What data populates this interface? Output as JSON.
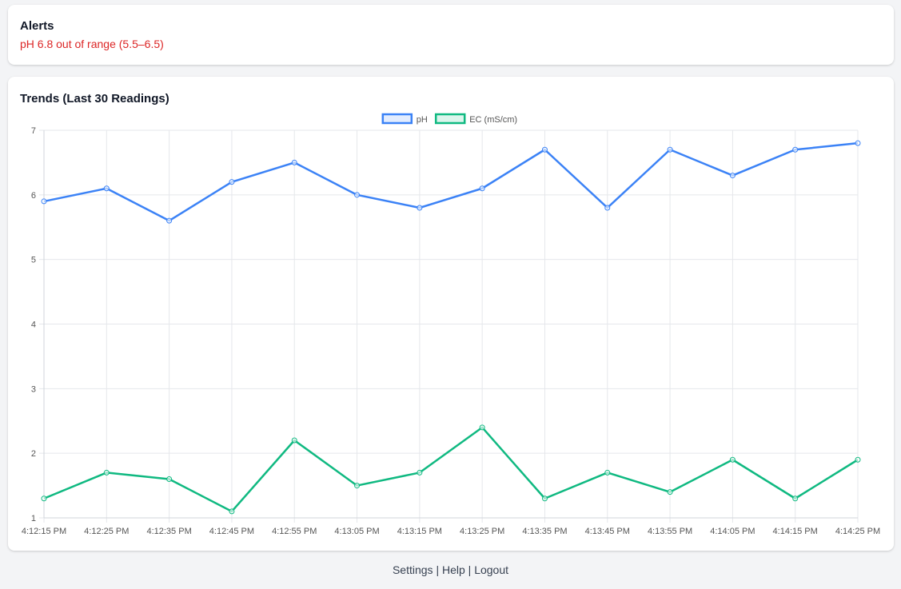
{
  "alerts": {
    "title": "Alerts",
    "message": "pH 6.8 out of range (5.5–6.5)"
  },
  "trends": {
    "title": "Trends (Last 30 Readings)"
  },
  "colors": {
    "ph": "#3b82f6",
    "ec": "#10b981",
    "alert": "#dc2626"
  },
  "chart_data": {
    "type": "line",
    "x": [
      "4:12:15 PM",
      "4:12:25 PM",
      "4:12:35 PM",
      "4:12:45 PM",
      "4:12:55 PM",
      "4:13:05 PM",
      "4:13:15 PM",
      "4:13:25 PM",
      "4:13:35 PM",
      "4:13:45 PM",
      "4:13:55 PM",
      "4:14:05 PM",
      "4:14:15 PM",
      "4:14:25 PM"
    ],
    "series": [
      {
        "name": "pH",
        "values": [
          5.9,
          6.1,
          5.6,
          6.2,
          6.5,
          6.0,
          5.8,
          6.1,
          6.7,
          5.8,
          6.7,
          6.3,
          6.7,
          6.8
        ]
      },
      {
        "name": "EC (mS/cm)",
        "values": [
          1.3,
          1.7,
          1.6,
          1.1,
          2.2,
          1.5,
          1.7,
          2.4,
          1.3,
          1.7,
          1.4,
          1.9,
          1.3,
          1.9
        ]
      }
    ],
    "ylim": [
      1,
      7
    ],
    "yticks": [
      1,
      2,
      3,
      4,
      5,
      6,
      7
    ],
    "grid": true,
    "legend": "top-center"
  },
  "footer": {
    "links": [
      "Settings",
      "Help",
      "Logout"
    ],
    "separator": "|"
  }
}
